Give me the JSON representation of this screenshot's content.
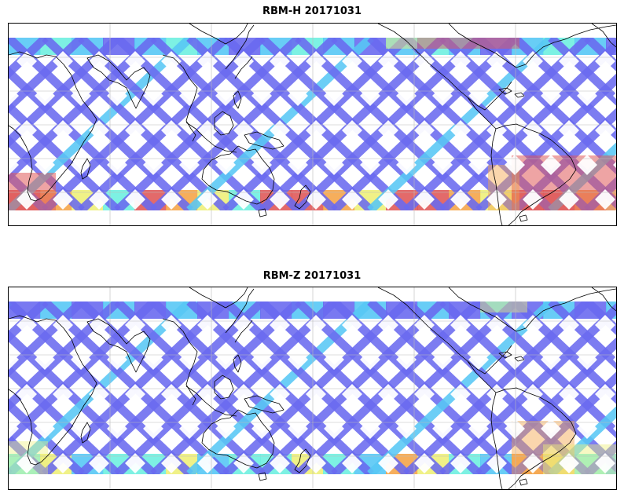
{
  "panels": [
    {
      "title": "RBM-H 20171031",
      "variant": "h"
    },
    {
      "title": "RBM-Z 20171031",
      "variant": "z"
    }
  ],
  "colors": {
    "track_low": "#6a6af0",
    "track_mid": "#58c8f5",
    "track_cyan": "#6ff0e0",
    "track_yellow": "#eef07a",
    "track_orange": "#f5a54a",
    "track_high": "#e05a5a",
    "coastline": "#000000",
    "gridline": "#bbbbbb",
    "frame": "#000000"
  },
  "icons": [
    "map-coastline",
    "map-gridlines",
    "satellite-swath-tracks"
  ]
}
